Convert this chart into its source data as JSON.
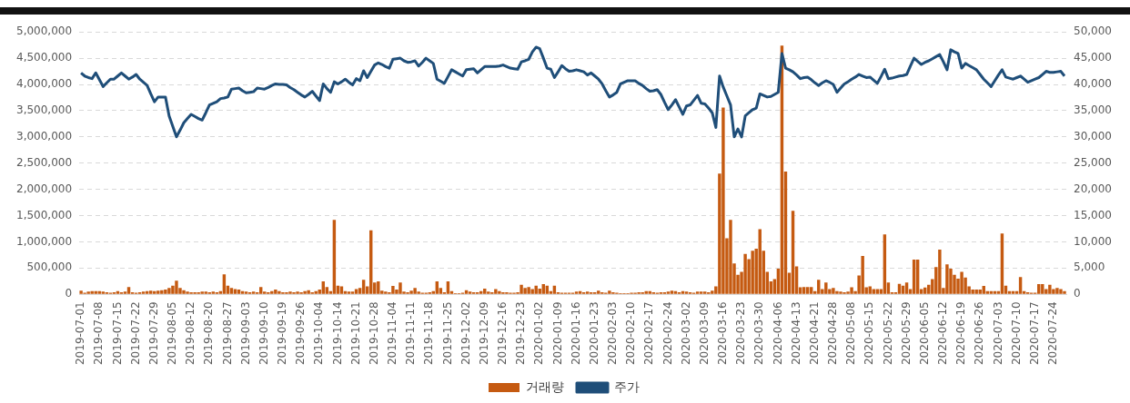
{
  "chart_data": {
    "type": "bar",
    "categories": [
      "2019-07-01",
      null,
      null,
      null,
      null,
      "2019-07-08",
      null,
      null,
      null,
      null,
      "2019-07-15",
      null,
      null,
      null,
      null,
      "2019-07-22",
      null,
      null,
      null,
      null,
      "2019-07-29",
      null,
      null,
      null,
      null,
      "2019-08-05",
      null,
      null,
      null,
      null,
      "2019-08-12",
      null,
      null,
      null,
      null,
      "2019-08-20",
      null,
      null,
      null,
      null,
      "2019-08-27",
      null,
      null,
      null,
      null,
      "2019-09-03",
      null,
      null,
      null,
      null,
      "2019-09-10",
      null,
      null,
      null,
      null,
      "2019-09-19",
      null,
      null,
      null,
      null,
      "2019-09-26",
      null,
      null,
      null,
      null,
      "2019-10-04",
      null,
      null,
      null,
      null,
      "2019-10-14",
      null,
      null,
      null,
      null,
      "2019-10-21",
      null,
      null,
      null,
      null,
      "2019-10-28",
      null,
      null,
      null,
      null,
      "2019-11-04",
      null,
      null,
      null,
      null,
      "2019-11-11",
      null,
      null,
      null,
      null,
      "2019-11-18",
      null,
      null,
      null,
      null,
      "2019-11-25",
      null,
      null,
      null,
      null,
      "2019-12-02",
      null,
      null,
      null,
      null,
      "2019-12-09",
      null,
      null,
      null,
      null,
      "2019-12-16",
      null,
      null,
      null,
      null,
      "2019-12-23",
      null,
      null,
      null,
      null,
      "2020-01-02",
      null,
      null,
      null,
      null,
      "2020-01-09",
      null,
      null,
      null,
      null,
      "2020-01-16",
      null,
      null,
      null,
      null,
      "2020-01-23",
      null,
      null,
      null,
      null,
      "2020-02-03",
      null,
      null,
      null,
      null,
      "2020-02-10",
      null,
      null,
      null,
      null,
      "2020-02-17",
      null,
      null,
      null,
      null,
      "2020-02-24",
      null,
      null,
      null,
      null,
      "2020-03-02",
      null,
      null,
      null,
      null,
      "2020-03-09",
      null,
      null,
      null,
      null,
      "2020-03-16",
      null,
      null,
      null,
      null,
      "2020-03-23",
      null,
      null,
      null,
      null,
      "2020-03-30",
      null,
      null,
      null,
      null,
      "2020-04-06",
      null,
      null,
      null,
      null,
      "2020-04-13",
      null,
      null,
      null,
      null,
      "2020-04-21",
      null,
      null,
      null,
      null,
      "2020-04-28",
      null,
      null,
      null,
      null,
      "2020-05-08",
      null,
      null,
      null,
      null,
      "2020-05-15",
      null,
      null,
      null,
      null,
      "2020-05-22",
      null,
      null,
      null,
      null,
      "2020-05-29",
      null,
      null,
      null,
      null,
      "2020-06-05",
      null,
      null,
      null,
      null,
      "2020-06-12",
      null,
      null,
      null,
      null,
      "2020-06-19",
      null,
      null,
      null,
      null,
      "2020-06-26",
      null,
      null,
      null,
      null,
      "2020-07-03",
      null,
      null,
      null,
      null,
      "2020-07-10",
      null,
      null,
      null,
      null,
      "2020-07-17",
      null,
      null,
      null,
      null,
      "2020-07-24",
      null,
      null,
      null
    ],
    "series": [
      {
        "name": "거래량",
        "color": "#c55a11",
        "values": [
          70000,
          30000,
          50000,
          60000,
          60000,
          60000,
          50000,
          40000,
          30000,
          40000,
          60000,
          40000,
          50000,
          140000,
          40000,
          30000,
          40000,
          50000,
          60000,
          70000,
          60000,
          70000,
          80000,
          90000,
          120000,
          165000,
          260000,
          120000,
          80000,
          50000,
          40000,
          40000,
          40000,
          50000,
          50000,
          40000,
          50000,
          40000,
          60000,
          380000,
          165000,
          120000,
          100000,
          90000,
          60000,
          50000,
          40000,
          50000,
          40000,
          140000,
          50000,
          40000,
          60000,
          90000,
          60000,
          40000,
          40000,
          50000,
          40000,
          50000,
          40000,
          60000,
          80000,
          40000,
          60000,
          90000,
          245000,
          140000,
          60000,
          1420000,
          165000,
          150000,
          60000,
          50000,
          50000,
          100000,
          120000,
          275000,
          150000,
          1220000,
          225000,
          245000,
          70000,
          50000,
          40000,
          160000,
          90000,
          225000,
          50000,
          40000,
          70000,
          120000,
          50000,
          30000,
          30000,
          40000,
          60000,
          245000,
          120000,
          40000,
          245000,
          60000,
          20000,
          20000,
          30000,
          80000,
          50000,
          40000,
          40000,
          60000,
          110000,
          50000,
          40000,
          100000,
          60000,
          40000,
          40000,
          30000,
          30000,
          40000,
          180000,
          120000,
          140000,
          100000,
          165000,
          110000,
          195000,
          165000,
          60000,
          165000,
          40000,
          30000,
          30000,
          30000,
          30000,
          50000,
          60000,
          40000,
          50000,
          40000,
          40000,
          70000,
          40000,
          30000,
          70000,
          40000,
          30000,
          20000,
          20000,
          20000,
          30000,
          30000,
          40000,
          40000,
          60000,
          60000,
          40000,
          30000,
          40000,
          40000,
          50000,
          70000,
          60000,
          40000,
          60000,
          50000,
          40000,
          30000,
          50000,
          50000,
          50000,
          40000,
          70000,
          150000,
          2300000,
          3560000,
          1070000,
          1420000,
          590000,
          370000,
          430000,
          770000,
          670000,
          830000,
          870000,
          1240000,
          830000,
          430000,
          245000,
          290000,
          490000,
          4740000,
          2340000,
          410000,
          1590000,
          530000,
          135000,
          140000,
          140000,
          140000,
          60000,
          275000,
          100000,
          225000,
          100000,
          120000,
          60000,
          50000,
          40000,
          50000,
          135000,
          60000,
          360000,
          730000,
          135000,
          150000,
          100000,
          100000,
          100000,
          1140000,
          225000,
          40000,
          40000,
          200000,
          165000,
          225000,
          100000,
          660000,
          660000,
          100000,
          130000,
          180000,
          290000,
          520000,
          850000,
          120000,
          570000,
          490000,
          370000,
          300000,
          430000,
          320000,
          150000,
          90000,
          90000,
          90000,
          160000,
          60000,
          60000,
          60000,
          60000,
          1160000,
          165000,
          60000,
          60000,
          60000,
          330000,
          60000,
          40000,
          30000,
          30000,
          195000,
          195000,
          100000,
          180000,
          100000,
          120000,
          100000,
          60000
        ]
      },
      {
        "name": "주가",
        "type": "line",
        "axis": "y2",
        "color": "#1f4e79",
        "values": [
          42200,
          41600,
          41300,
          41100,
          42200,
          40900,
          39600,
          40300,
          41000,
          41000,
          41600,
          42200,
          41600,
          41000,
          41400,
          41900,
          41000,
          40400,
          39800,
          38200,
          36700,
          37600,
          37600,
          37600,
          34000,
          32000,
          30000,
          31300,
          32700,
          33500,
          34300,
          33900,
          33500,
          33200,
          34600,
          36100,
          36400,
          36700,
          37300,
          37400,
          37600,
          39100,
          39200,
          39300,
          38800,
          38400,
          38500,
          38600,
          39300,
          39200,
          39100,
          39400,
          39800,
          40100,
          40000,
          40000,
          39900,
          39400,
          39000,
          38500,
          38000,
          37600,
          38100,
          38700,
          37800,
          36900,
          40100,
          39200,
          38500,
          40500,
          40100,
          40500,
          41000,
          40400,
          39900,
          41100,
          40700,
          42600,
          41300,
          42500,
          43700,
          44100,
          43800,
          43400,
          43100,
          44800,
          44900,
          45000,
          44500,
          44200,
          44300,
          44500,
          43500,
          44200,
          45000,
          44500,
          44000,
          41000,
          40600,
          40200,
          41500,
          42800,
          42400,
          42000,
          41600,
          42800,
          42900,
          43000,
          42200,
          42800,
          43400,
          43400,
          43400,
          43400,
          43500,
          43700,
          43400,
          43100,
          43000,
          42900,
          44300,
          44500,
          44800,
          46200,
          47100,
          46800,
          45000,
          43100,
          42900,
          41300,
          42400,
          43600,
          43000,
          42500,
          42600,
          42800,
          42600,
          42400,
          41800,
          42200,
          41600,
          41000,
          40100,
          38800,
          37600,
          38000,
          38500,
          40100,
          40400,
          40700,
          40700,
          40700,
          40200,
          39800,
          39200,
          38700,
          38800,
          39000,
          38100,
          36600,
          35200,
          36100,
          37100,
          35700,
          34300,
          35900,
          36100,
          37000,
          37900,
          36400,
          36300,
          35500,
          34600,
          31800,
          41600,
          39500,
          37800,
          36100,
          30000,
          31500,
          30000,
          34000,
          34600,
          35200,
          35500,
          38200,
          37900,
          37600,
          37700,
          38100,
          38500,
          45900,
          43100,
          42800,
          42400,
          41800,
          41100,
          41300,
          41400,
          40900,
          40300,
          39800,
          40300,
          40700,
          40400,
          40000,
          38500,
          39300,
          40100,
          40500,
          41000,
          41400,
          41900,
          41600,
          41300,
          41400,
          40800,
          40200,
          41500,
          42900,
          41100,
          41200,
          41400,
          41600,
          41700,
          41900,
          43500,
          45000,
          44400,
          43800,
          44200,
          44500,
          44900,
          45300,
          45700,
          44300,
          42800,
          46600,
          46200,
          45900,
          43100,
          44000,
          43600,
          43200,
          42800,
          41900,
          41000,
          40300,
          39600,
          40700,
          41800,
          42800,
          41400,
          41200,
          41000,
          41300,
          41600,
          41000,
          40400,
          40700,
          41000,
          41300,
          41900,
          42500,
          42300,
          42300,
          42400,
          42500,
          41600
        ]
      }
    ],
    "ylim": [
      0,
      5000000
    ],
    "yticks": [
      {
        "value": 0,
        "label": "0"
      },
      {
        "value": 500000,
        "label": "500,000"
      },
      {
        "value": 1000000,
        "label": "1,000,000"
      },
      {
        "value": 1500000,
        "label": "1,500,000"
      },
      {
        "value": 2000000,
        "label": "2,000,000"
      },
      {
        "value": 2500000,
        "label": "2,500,000"
      },
      {
        "value": 3000000,
        "label": "3,000,000"
      },
      {
        "value": 3500000,
        "label": "3,500,000"
      },
      {
        "value": 4000000,
        "label": "4,000,000"
      },
      {
        "value": 4500000,
        "label": "4,500,000"
      },
      {
        "value": 5000000,
        "label": "5,000,000"
      }
    ],
    "y2lim": [
      0,
      50000
    ],
    "y2ticks": [
      {
        "value": 0,
        "label": "0"
      },
      {
        "value": 5000,
        "label": "5,000"
      },
      {
        "value": 10000,
        "label": "10,000"
      },
      {
        "value": 15000,
        "label": "15,000"
      },
      {
        "value": 20000,
        "label": "20,000"
      },
      {
        "value": 25000,
        "label": "25,000"
      },
      {
        "value": 30000,
        "label": "30,000"
      },
      {
        "value": 35000,
        "label": "35,000"
      },
      {
        "value": 40000,
        "label": "40,000"
      },
      {
        "value": 45000,
        "label": "45,000"
      },
      {
        "value": 50000,
        "label": "50,000"
      }
    ],
    "grid": "y",
    "legend": "bottom",
    "marker": "none",
    "line_style": "solid"
  }
}
